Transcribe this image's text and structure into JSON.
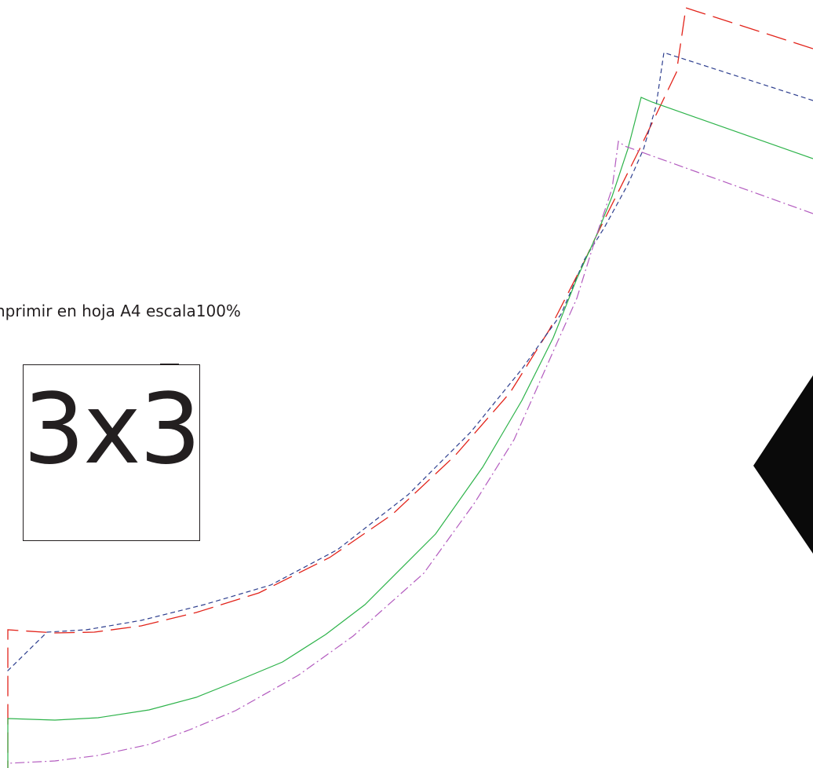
{
  "instruction_text": "nprimir en hoja A4 escala100%",
  "scale_label": "3x3",
  "colors": {
    "size_largest": "#e2231a",
    "size_large": "#2e3f8f",
    "size_medium": "#2db34a",
    "size_small": "#b35bbf",
    "ink": "#231f20",
    "notch": "#0a0a0a"
  }
}
